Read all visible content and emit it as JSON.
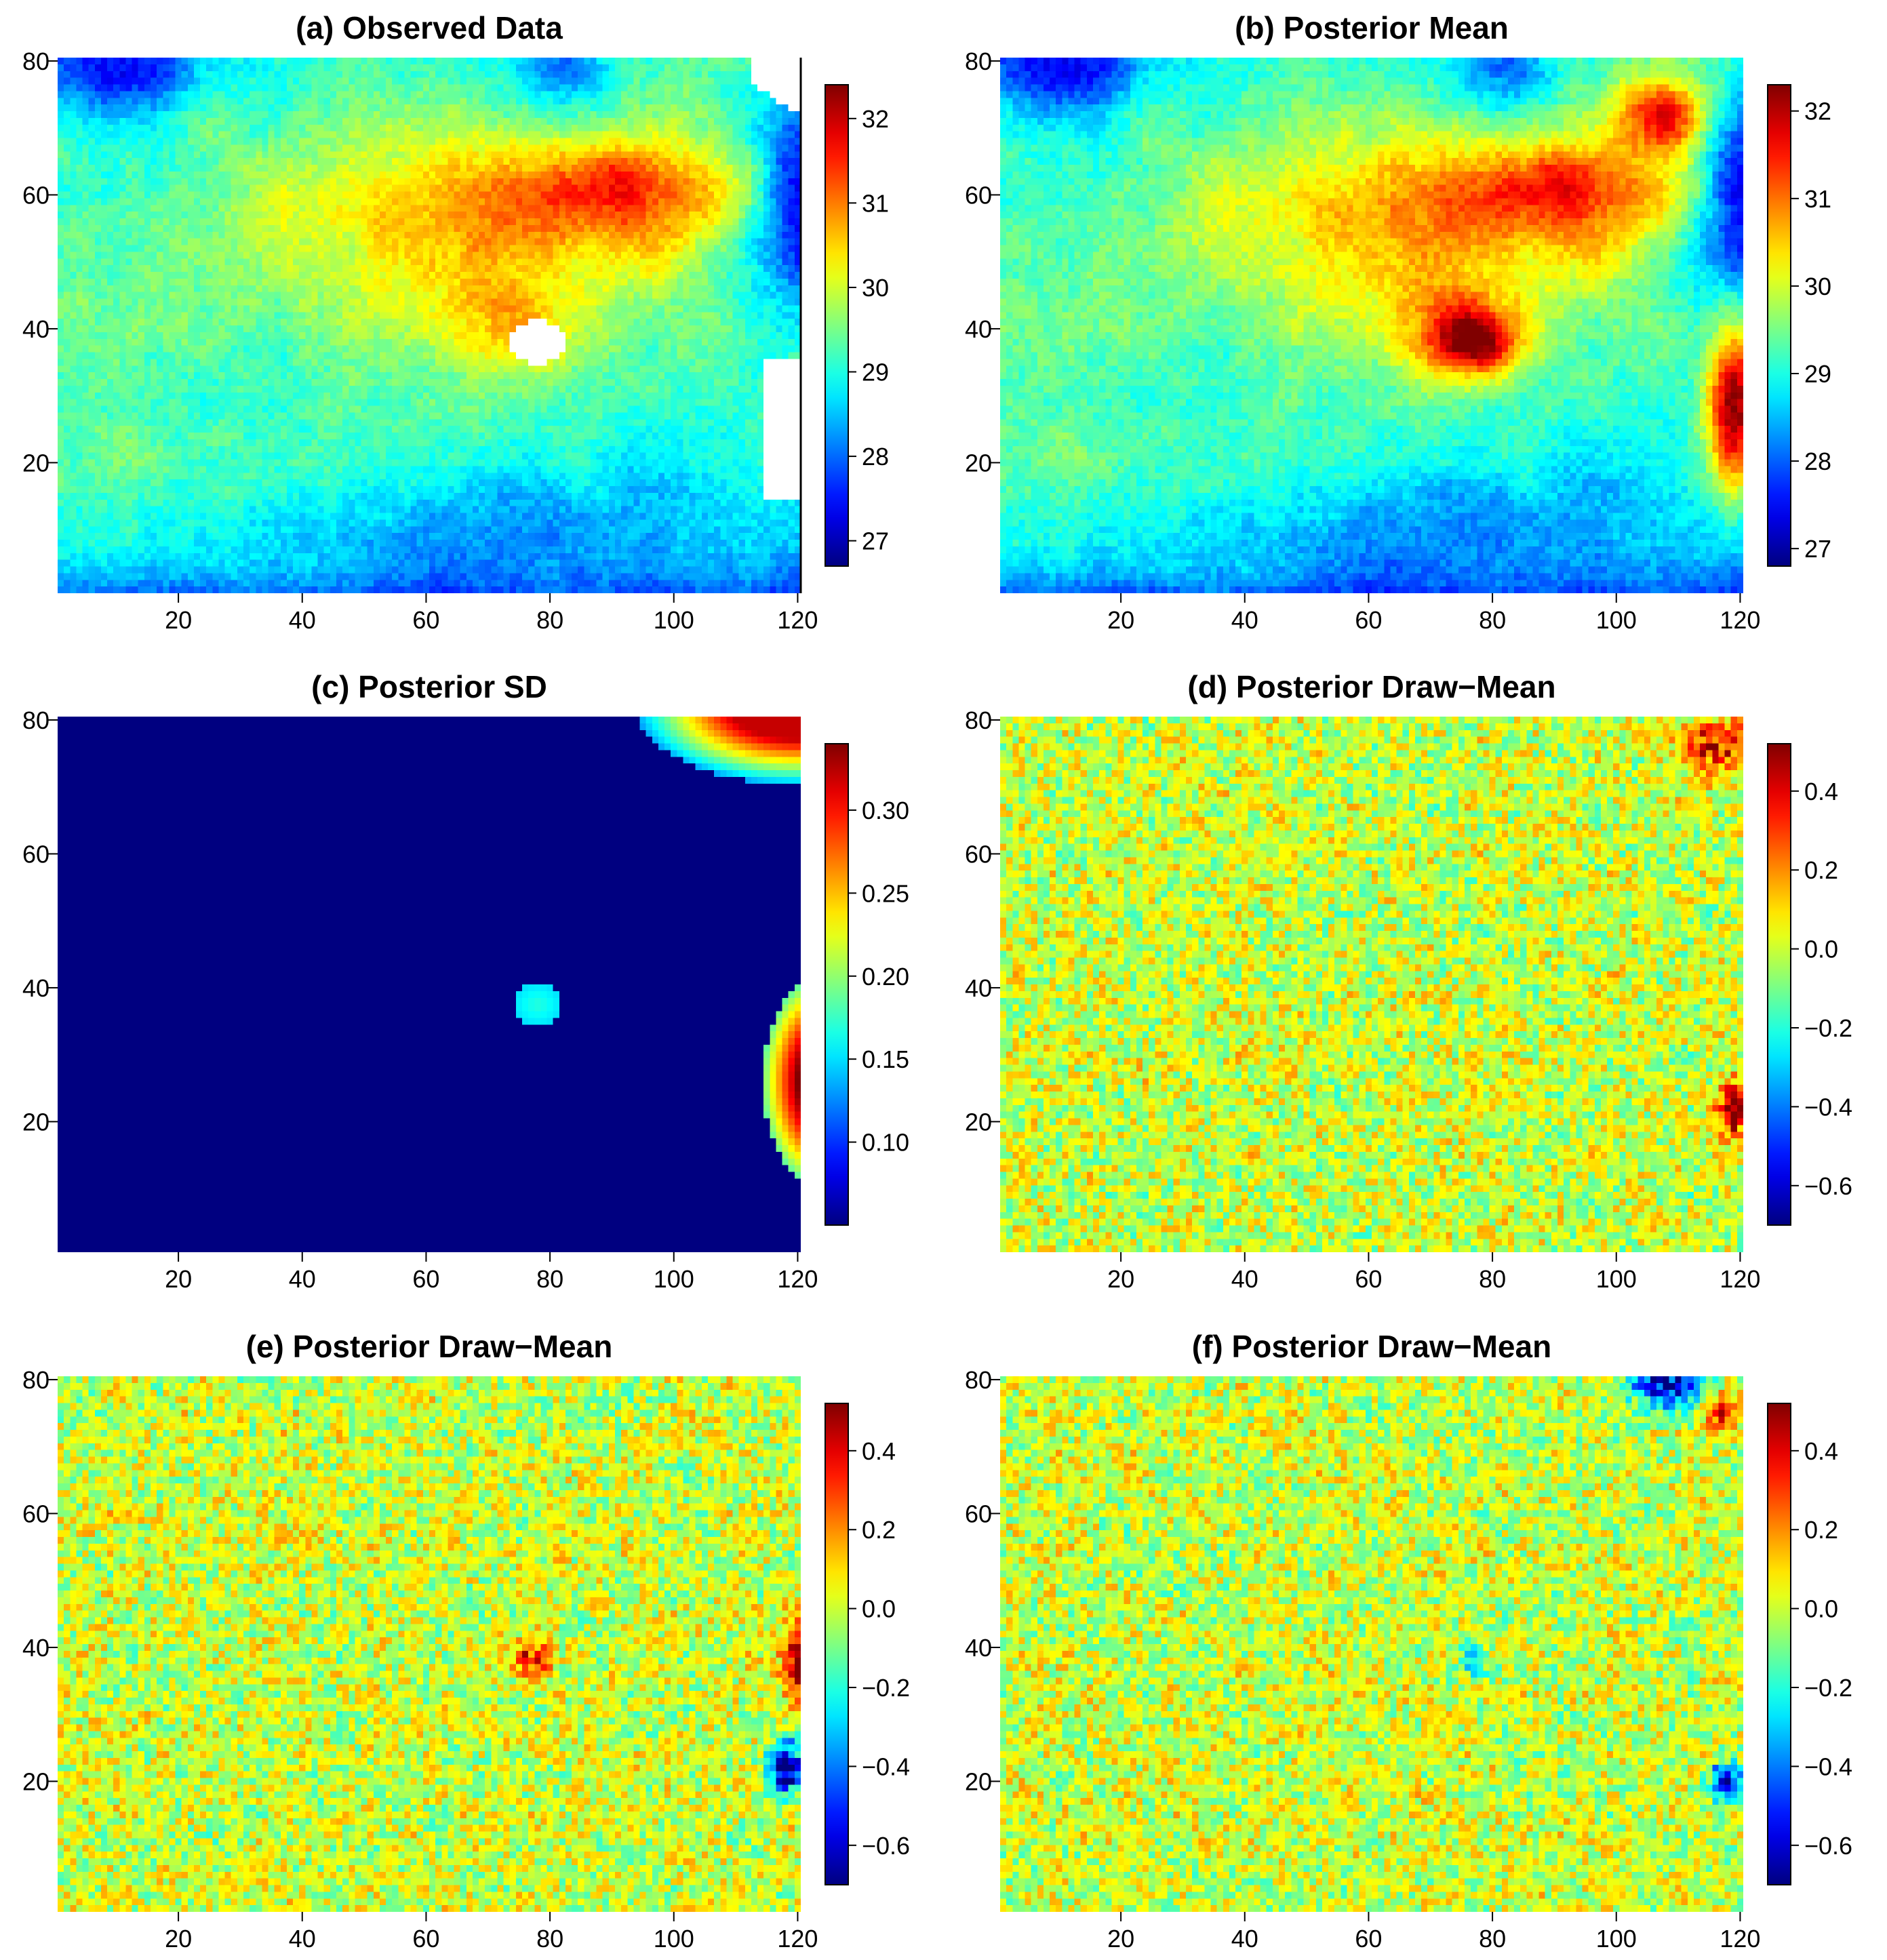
{
  "chart_data": [
    {
      "type": "heatmap",
      "title": "(a) Observed Data",
      "xlim": [
        1,
        120
      ],
      "ylim": [
        1,
        80
      ],
      "x_ticks": [
        "20",
        "40",
        "60",
        "80",
        "100",
        "120"
      ],
      "y_ticks": [
        "20",
        "40",
        "60",
        "80"
      ],
      "colorbar": {
        "ticks": [
          "27",
          "28",
          "29",
          "30",
          "31",
          "32"
        ],
        "range": [
          26.7,
          32.4
        ]
      },
      "missing_regions": [
        {
          "center": [
            78,
            38
          ],
          "extent": "island of missing values"
        },
        {
          "center": [
            115,
            78
          ],
          "extent": "top-right corner"
        },
        {
          "center": [
            117,
            25
          ],
          "extent": "right edge strip"
        }
      ],
      "features": {
        "hotspot": [
          92,
          62
        ],
        "value_range": [
          26.8,
          32.4
        ]
      }
    },
    {
      "type": "heatmap",
      "title": "(b) Posterior Mean",
      "xlim": [
        1,
        120
      ],
      "ylim": [
        1,
        80
      ],
      "x_ticks": [
        "20",
        "40",
        "60",
        "80",
        "100",
        "120"
      ],
      "y_ticks": [
        "20",
        "40",
        "60",
        "80"
      ],
      "colorbar": {
        "ticks": [
          "27",
          "28",
          "29",
          "30",
          "31",
          "32"
        ],
        "range": [
          26.8,
          32.3
        ]
      },
      "features": {
        "hotspots": [
          [
            92,
            62
          ],
          [
            108,
            72
          ],
          [
            77,
            38
          ],
          [
            118,
            28
          ]
        ]
      }
    },
    {
      "type": "heatmap",
      "title": "(c) Posterior SD",
      "xlim": [
        1,
        120
      ],
      "ylim": [
        1,
        80
      ],
      "x_ticks": [
        "20",
        "40",
        "60",
        "80",
        "100",
        "120"
      ],
      "y_ticks": [
        "20",
        "40",
        "60",
        "80"
      ],
      "colorbar": {
        "ticks": [
          "0.10",
          "0.15",
          "0.20",
          "0.25",
          "0.30"
        ],
        "range": [
          0.05,
          0.34
        ]
      },
      "features": {
        "background": 0.05,
        "high_regions": [
          [
            78,
            38
          ],
          [
            114,
            76
          ],
          [
            118,
            25
          ]
        ]
      }
    },
    {
      "type": "heatmap",
      "title": "(d) Posterior Draw−Mean",
      "xlim": [
        1,
        120
      ],
      "ylim": [
        1,
        80
      ],
      "x_ticks": [
        "20",
        "40",
        "60",
        "80",
        "100",
        "120"
      ],
      "y_ticks": [
        "20",
        "40",
        "60",
        "80"
      ],
      "colorbar": {
        "ticks": [
          "−0.6",
          "−0.4",
          "−0.2",
          "0.0",
          "0.2",
          "0.4"
        ],
        "range": [
          -0.7,
          0.52
        ]
      },
      "features": {
        "noise_sd": 0.1
      }
    },
    {
      "type": "heatmap",
      "title": "(e) Posterior Draw−Mean",
      "xlim": [
        1,
        120
      ],
      "ylim": [
        1,
        80
      ],
      "x_ticks": [
        "20",
        "40",
        "60",
        "80",
        "100",
        "120"
      ],
      "y_ticks": [
        "20",
        "40",
        "60",
        "80"
      ],
      "colorbar": {
        "ticks": [
          "−0.6",
          "−0.4",
          "−0.2",
          "0.0",
          "0.2",
          "0.4"
        ],
        "range": [
          -0.7,
          0.52
        ]
      },
      "features": {
        "noise_sd": 0.1
      }
    },
    {
      "type": "heatmap",
      "title": "(f) Posterior Draw−Mean",
      "xlim": [
        1,
        120
      ],
      "ylim": [
        1,
        80
      ],
      "x_ticks": [
        "20",
        "40",
        "60",
        "80",
        "100",
        "120"
      ],
      "y_ticks": [
        "20",
        "40",
        "60",
        "80"
      ],
      "colorbar": {
        "ticks": [
          "−0.6",
          "−0.4",
          "−0.2",
          "0.0",
          "0.2",
          "0.4"
        ],
        "range": [
          -0.7,
          0.52
        ]
      },
      "features": {
        "noise_sd": 0.1
      }
    }
  ]
}
